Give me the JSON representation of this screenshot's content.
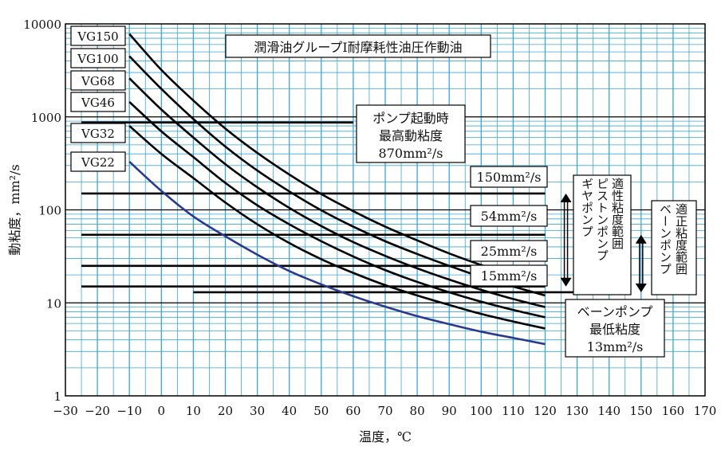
{
  "chart_data": {
    "type": "line",
    "title": "潤滑油グループⅠ耐摩耗性油圧作動油",
    "xlabel": "温度，℃",
    "ylabel": "動粘度，mm²/s",
    "xlim": [
      -30,
      170
    ],
    "ylim": [
      1,
      10000
    ],
    "yscale": "log",
    "grid": true,
    "x_ticks": [
      "−30",
      "−20",
      "−10",
      "0",
      "10",
      "20",
      "30",
      "40",
      "50",
      "60",
      "70",
      "80",
      "90",
      "100",
      "110",
      "120",
      "130",
      "140",
      "150",
      "160",
      "170"
    ],
    "y_ticks": [
      "1",
      "10",
      "100",
      "1000",
      "10000"
    ],
    "series": [
      {
        "name": "VG150",
        "color": "#000000",
        "x": [
          -10,
          0,
          10,
          20,
          30,
          40,
          50,
          60,
          70,
          80,
          90,
          100,
          110,
          120
        ],
        "y": [
          7800,
          3200,
          1500,
          750,
          410,
          240,
          148,
          97,
          66,
          47,
          34,
          25.5,
          19.6,
          15.4
        ]
      },
      {
        "name": "VG100",
        "color": "#000000",
        "x": [
          -10,
          0,
          10,
          20,
          30,
          40,
          50,
          60,
          70,
          80,
          90,
          100,
          110,
          120
        ],
        "y": [
          4500,
          2000,
          950,
          480,
          265,
          158,
          99,
          66,
          46,
          33.5,
          25,
          19,
          15,
          12
        ]
      },
      {
        "name": "VG68",
        "color": "#000000",
        "x": [
          -10,
          0,
          10,
          20,
          30,
          40,
          50,
          60,
          70,
          80,
          90,
          100,
          110,
          120
        ],
        "y": [
          2600,
          1200,
          600,
          310,
          175,
          105,
          67,
          45,
          32,
          23.5,
          17.8,
          13.8,
          11,
          9
        ]
      },
      {
        "name": "VG46",
        "color": "#000000",
        "x": [
          -10,
          0,
          10,
          20,
          30,
          40,
          50,
          60,
          70,
          80,
          90,
          100,
          110,
          120
        ],
        "y": [
          1450,
          700,
          370,
          195,
          112,
          70,
          46,
          31.5,
          22.5,
          16.8,
          13,
          10.3,
          8.4,
          7
        ]
      },
      {
        "name": "VG32",
        "color": "#000000",
        "x": [
          -10,
          0,
          10,
          20,
          30,
          40,
          50,
          60,
          70,
          80,
          90,
          100,
          110,
          120
        ],
        "y": [
          800,
          400,
          220,
          120,
          70,
          44,
          29.5,
          21,
          15.5,
          12,
          9.5,
          7.6,
          6.3,
          5.3
        ]
      },
      {
        "name": "VG22",
        "color": "#2a3a8f",
        "x": [
          -10,
          0,
          10,
          20,
          30,
          40,
          50,
          60,
          70,
          80,
          90,
          100,
          110,
          120
        ],
        "y": [
          330,
          160,
          85,
          52,
          33,
          22,
          15.8,
          11.8,
          9.1,
          7.2,
          5.9,
          4.9,
          4.2,
          3.6
        ]
      }
    ],
    "reference_lines": [
      {
        "y": 870,
        "x": [
          -25,
          60
        ]
      },
      {
        "y": 150,
        "x": [
          -25,
          120
        ]
      },
      {
        "y": 54,
        "x": [
          -25,
          120
        ]
      },
      {
        "y": 25,
        "x": [
          -25,
          120
        ]
      },
      {
        "y": 15,
        "x": [
          -25,
          120
        ]
      },
      {
        "y": 13,
        "x": [
          10,
          130
        ]
      }
    ],
    "annotations": {
      "pump_start": [
        "ポンプ起動時",
        "最高動粘度",
        "870mm²/s"
      ],
      "l150": "150mm²/s",
      "l54": "54mm²/s",
      "l25": "25mm²/s",
      "l15": "15mm²/s",
      "vane_min": [
        "ベーンポンプ",
        "最低粘度",
        "13mm²/s"
      ],
      "gear_piston": [
        "ギヤポンプ",
        "ピストンポンプ",
        "適性粘度範囲"
      ],
      "vane_range": [
        "ベーンポンプ",
        "適正粘度範囲"
      ]
    },
    "ranges": {
      "gear_piston": [
        15,
        150
      ],
      "vane": [
        13,
        54
      ]
    }
  }
}
